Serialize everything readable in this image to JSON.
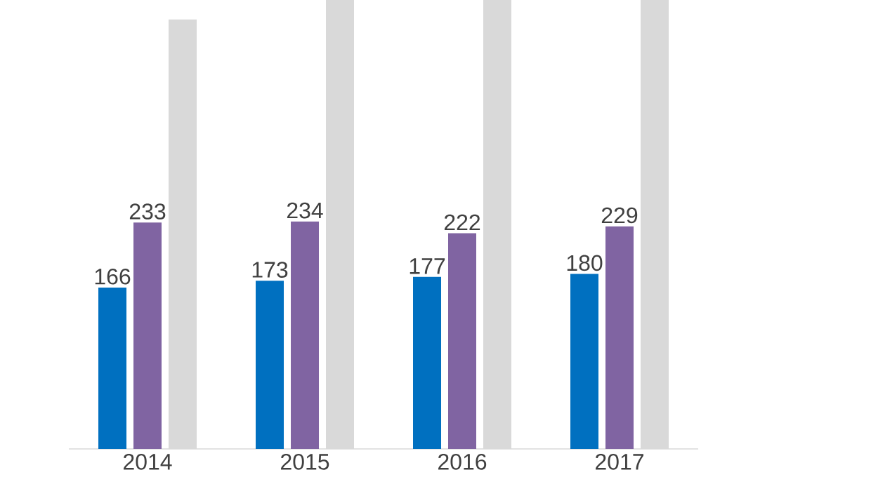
{
  "chart_data": {
    "type": "bar",
    "categories": [
      "2014",
      "2015",
      "2016",
      "2017"
    ],
    "series": [
      {
        "color": "#0070c0",
        "values": [
          166,
          173,
          177,
          180
        ],
        "value_labels": [
          "166",
          "173",
          "177",
          "180"
        ]
      },
      {
        "color": "#8064a2",
        "values": [
          233,
          234,
          222,
          229
        ],
        "value_labels": [
          "233",
          "234",
          "222",
          "229"
        ]
      },
      {
        "color": "#d9d9d9",
        "values": [
          442,
          462,
          462,
          462
        ],
        "value_labels": [
          null,
          null,
          null,
          null
        ]
      }
    ],
    "ylim": [
      0,
      462
    ],
    "tick_labels": "x"
  }
}
